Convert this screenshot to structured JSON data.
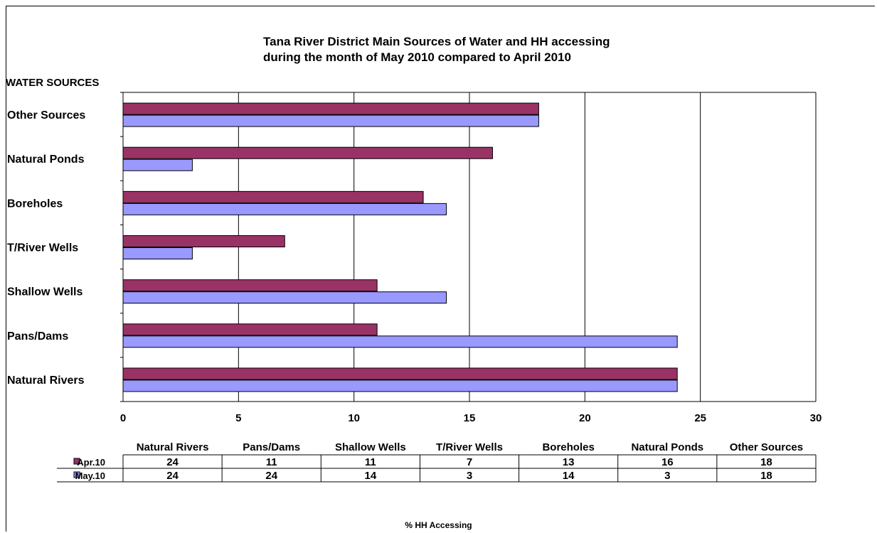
{
  "chart_data": {
    "type": "bar",
    "orientation": "horizontal",
    "title_line1": "Tana River District Main Sources of Water and HH accessing",
    "title_line2": "during the month of May 2010 compared to April 2010",
    "ylabel": "WATER SOURCES",
    "xlabel": "% HH Accessing",
    "categories": [
      "Natural Rivers",
      "Pans/Dams",
      "Shallow Wells",
      "T/River Wells",
      "Boreholes",
      "Natural Ponds",
      "Other Sources"
    ],
    "series": [
      {
        "name": "Apr.10",
        "values": [
          24,
          11,
          11,
          7,
          13,
          16,
          18
        ],
        "color": "#993366"
      },
      {
        "name": "May.10",
        "values": [
          24,
          24,
          14,
          3,
          14,
          3,
          18
        ],
        "color": "#9999ff"
      }
    ],
    "xlim": [
      0,
      30
    ],
    "xticks": [
      "0",
      "5",
      "10",
      "15",
      "20",
      "25",
      "30"
    ],
    "grid": true,
    "legend": "data-table"
  }
}
